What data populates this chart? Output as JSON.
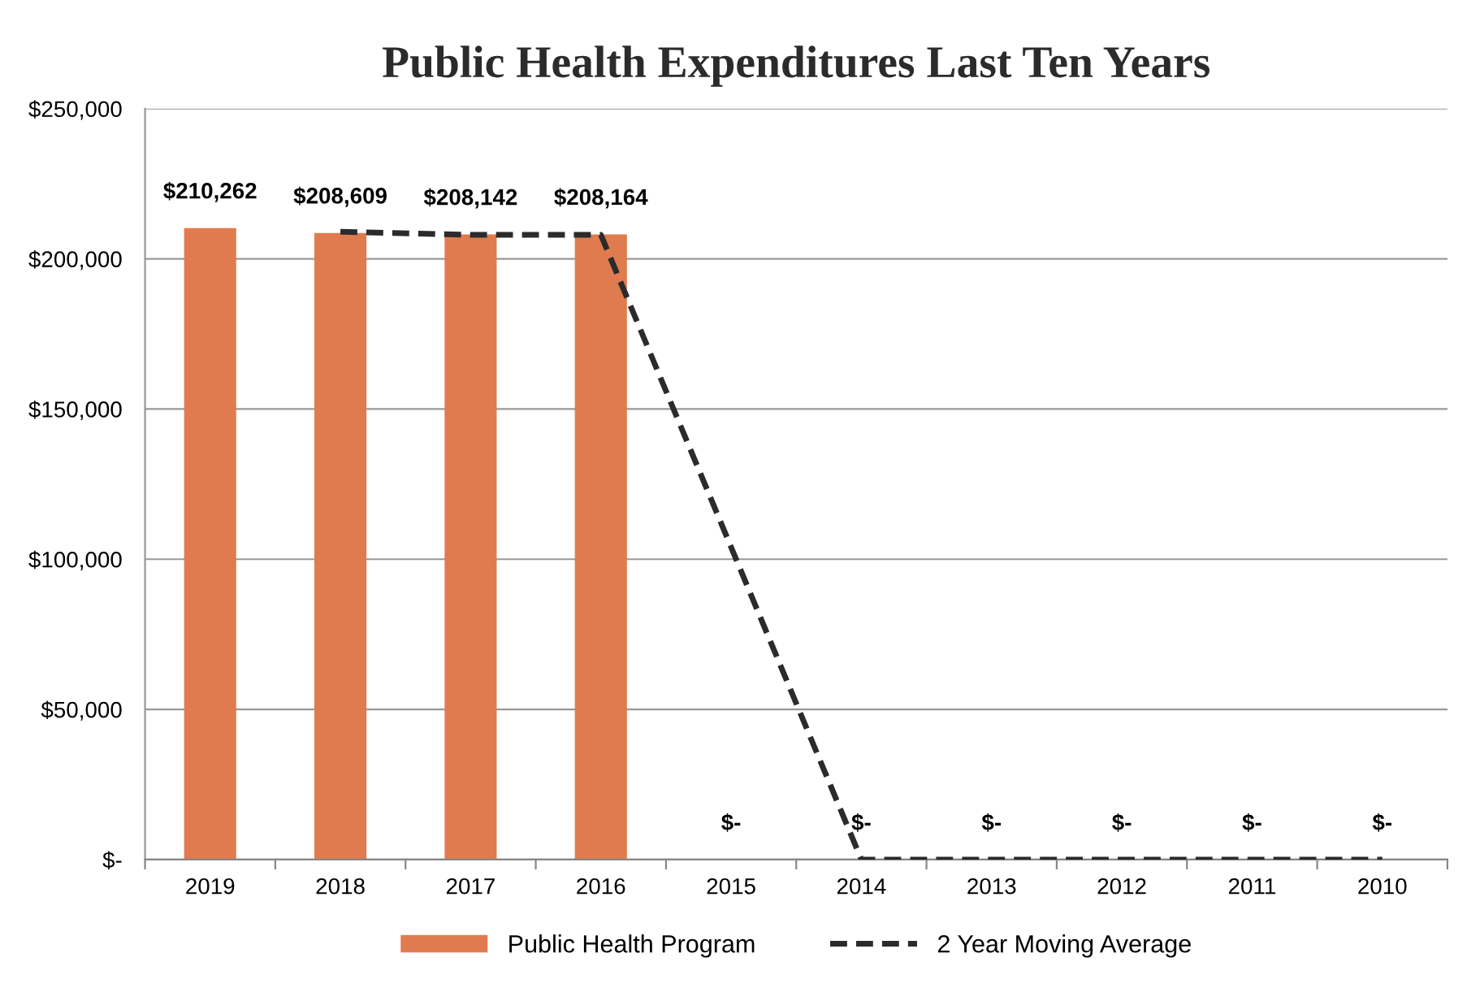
{
  "chart_data": {
    "type": "bar",
    "title": "Public Health Expenditures Last Ten Years",
    "categories": [
      "2019",
      "2018",
      "2017",
      "2016",
      "2015",
      "2014",
      "2013",
      "2012",
      "2011",
      "2010"
    ],
    "series": [
      {
        "name": "Public Health Program",
        "color": "#e07b4f",
        "values": [
          210262,
          208609,
          208142,
          208164,
          0,
          0,
          0,
          0,
          0,
          0
        ],
        "value_labels": [
          "$210,262",
          "$208,609",
          "$208,142",
          "$208,164",
          "$-",
          "$-",
          "$-",
          "$-",
          "$-",
          "$-"
        ]
      },
      {
        "name": "2 Year Moving Average",
        "type": "line",
        "color": "#2b2b2b",
        "line_style": "dashed",
        "values": [
          null,
          209000,
          208000,
          208000,
          104000,
          0,
          0,
          0,
          0,
          0
        ]
      }
    ],
    "ylim": [
      0,
      250000
    ],
    "yticks": [
      {
        "value": 0,
        "label": "$-"
      },
      {
        "value": 50000,
        "label": "$50,000"
      },
      {
        "value": 100000,
        "label": "$100,000"
      },
      {
        "value": 150000,
        "label": "$150,000"
      },
      {
        "value": 200000,
        "label": "$200,000"
      },
      {
        "value": 250000,
        "label": "$250,000"
      }
    ],
    "grid": "y",
    "legend": "bottom"
  }
}
